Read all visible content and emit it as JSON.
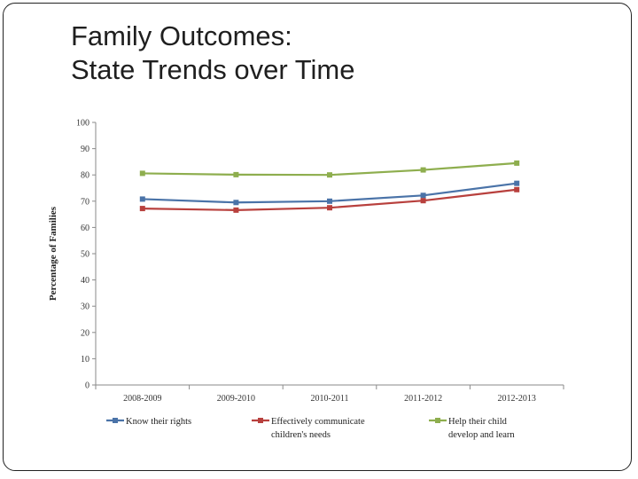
{
  "slide": {
    "title_line1": "Family Outcomes:",
    "title_line2": "State Trends over Time"
  },
  "chart_data": {
    "type": "line",
    "title": "Family Outcomes: State Trends over Time",
    "xlabel": "",
    "ylabel": "Percentage of Families",
    "ylim": [
      0,
      100
    ],
    "yticks": [
      0,
      10,
      20,
      30,
      40,
      50,
      60,
      70,
      80,
      90,
      100
    ],
    "categories": [
      "2008-2009",
      "2009-2010",
      "2010-2011",
      "2011-2012",
      "2012-2013"
    ],
    "legend_position": "bottom",
    "series": [
      {
        "name": "Know their rights",
        "legend_lines": [
          "Know their rights"
        ],
        "color": "#4a73a8",
        "values": [
          70.8,
          69.5,
          70.0,
          72.2,
          76.8
        ]
      },
      {
        "name": "Effectively communicate children's needs",
        "legend_lines": [
          "Effectively communicate",
          "children's needs"
        ],
        "color": "#b8403d",
        "values": [
          67.2,
          66.6,
          67.5,
          70.2,
          74.4
        ]
      },
      {
        "name": "Help their child develop and learn",
        "legend_lines": [
          "Help their child",
          "develop and learn"
        ],
        "color": "#8eae4e",
        "values": [
          80.6,
          80.1,
          80.0,
          81.9,
          84.5
        ]
      }
    ]
  }
}
